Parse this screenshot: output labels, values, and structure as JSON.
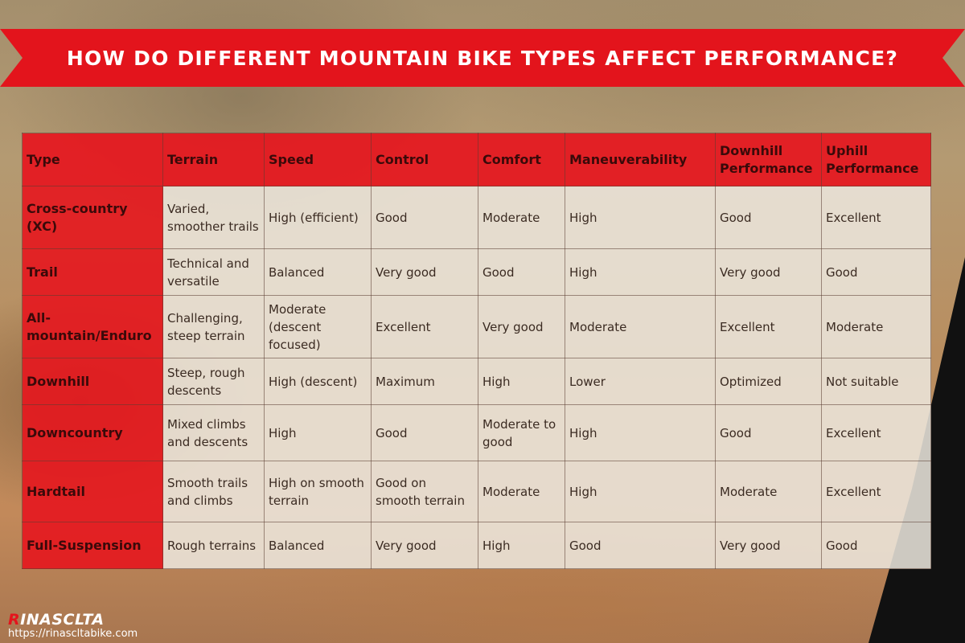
{
  "title": "HOW DO DIFFERENT MOUNTAIN BIKE TYPES AFFECT PERFORMANCE?",
  "colors": {
    "banner": "#e3141c",
    "header_cells": "#e6161e",
    "data_cells": "#ece8de",
    "text": "#3b2b22"
  },
  "table": {
    "headers": [
      "Type",
      "Terrain",
      "Speed",
      "Control",
      "Comfort",
      "Maneuverability",
      "Downhill Performance",
      "Uphill Performance"
    ],
    "rows": [
      [
        "Cross-country (XC)",
        "Varied, smoother trails",
        "High (efficient)",
        "Good",
        "Moderate",
        "High",
        "Good",
        "Excellent"
      ],
      [
        "Trail",
        "Technical and versatile",
        "Balanced",
        "Very good",
        "Good",
        "High",
        "Very good",
        "Good"
      ],
      [
        "All-mountain/Enduro",
        "Challenging, steep terrain",
        "Moderate (descent focused)",
        "Excellent",
        "Very good",
        "Moderate",
        "Excellent",
        "Moderate"
      ],
      [
        "Downhill",
        "Steep, rough descents",
        "High (descent)",
        "Maximum",
        "High",
        "Lower",
        "Optimized",
        "Not suitable"
      ],
      [
        "Downcountry",
        "Mixed climbs and descents",
        "High",
        "Good",
        "Moderate to good",
        "High",
        "Good",
        "Excellent"
      ],
      [
        "Hardtail",
        "Smooth trails and climbs",
        "High on smooth terrain",
        "Good on smooth terrain",
        "Moderate",
        "High",
        "Moderate",
        "Excellent"
      ],
      [
        "Full-Suspension",
        "Rough terrains",
        "Balanced",
        "Very good",
        "High",
        "Good",
        "Very good",
        "Good"
      ]
    ]
  },
  "brand": {
    "logo_first": "R",
    "logo_rest": "INASCLTA",
    "url": "https://rinascltabike.com"
  }
}
